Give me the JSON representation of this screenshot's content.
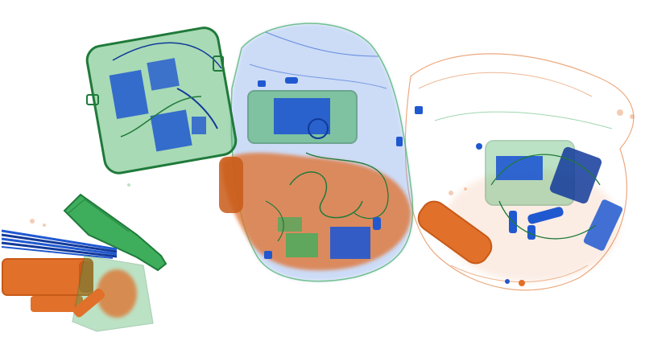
{
  "image": {
    "kind": "x-ray baggage scan",
    "palette": {
      "background": "#ffffff",
      "organic": "#e0702a",
      "organic_dark": "#c85a18",
      "mixed": "#3fae5c",
      "mixed_dark": "#1f7a3a",
      "metal": "#2058d0",
      "metal_dark": "#123a9a",
      "haze": "#6f9be8"
    },
    "objects": [
      {
        "name": "small-case",
        "material": "mixed"
      },
      {
        "name": "backpack",
        "material": "mixed"
      },
      {
        "name": "duffel-bag",
        "material": "organic"
      },
      {
        "name": "bottle",
        "material": "mixed"
      },
      {
        "name": "cylindrical-canister",
        "material": "organic"
      },
      {
        "name": "rods-bundle",
        "material": "metal"
      },
      {
        "name": "food-pouch",
        "material": "organic"
      }
    ]
  }
}
